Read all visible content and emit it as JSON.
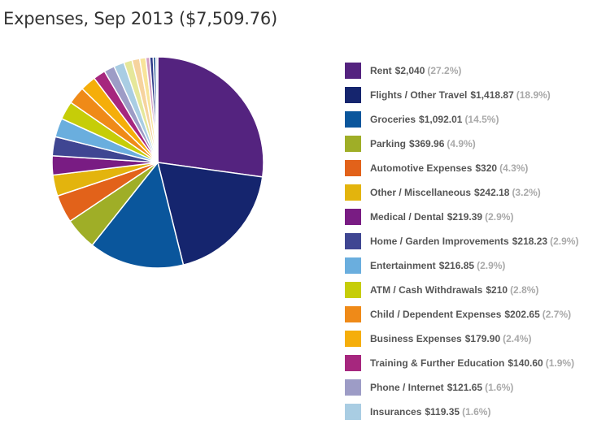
{
  "chart_data": {
    "type": "pie",
    "title": "Expenses, Sep 2013 ($7,509.76)",
    "total": 7509.76,
    "legend_position": "right",
    "slices": [
      {
        "label": "Rent",
        "amount": "$2,040",
        "value": 2040,
        "percent": "(27.2%)",
        "color": "#54237f"
      },
      {
        "label": "Flights / Other Travel",
        "amount": "$1,418.87",
        "value": 1418.87,
        "percent": "(18.9%)",
        "color": "#15256e"
      },
      {
        "label": "Groceries",
        "amount": "$1,092.01",
        "value": 1092.01,
        "percent": "(14.5%)",
        "color": "#0a569c"
      },
      {
        "label": "Parking",
        "amount": "$369.96",
        "value": 369.96,
        "percent": "(4.9%)",
        "color": "#9fae27"
      },
      {
        "label": "Automotive Expenses",
        "amount": "$320",
        "value": 320,
        "percent": "(4.3%)",
        "color": "#e2621a"
      },
      {
        "label": "Other / Miscellaneous",
        "amount": "$242.18",
        "value": 242.18,
        "percent": "(3.2%)",
        "color": "#e3b40d"
      },
      {
        "label": "Medical / Dental",
        "amount": "$219.39",
        "value": 219.39,
        "percent": "(2.9%)",
        "color": "#791c83"
      },
      {
        "label": "Home / Garden Improvements",
        "amount": "$218.23",
        "value": 218.23,
        "percent": "(2.9%)",
        "color": "#3f4692"
      },
      {
        "label": "Entertainment",
        "amount": "$216.85",
        "value": 216.85,
        "percent": "(2.9%)",
        "color": "#6aaede"
      },
      {
        "label": "ATM / Cash Withdrawals",
        "amount": "$210",
        "value": 210,
        "percent": "(2.8%)",
        "color": "#c6cd08"
      },
      {
        "label": "Child / Dependent Expenses",
        "amount": "$202.65",
        "value": 202.65,
        "percent": "(2.7%)",
        "color": "#ef8a18"
      },
      {
        "label": "Business Expenses",
        "amount": "$179.90",
        "value": 179.9,
        "percent": "(2.4%)",
        "color": "#f5ae0a"
      },
      {
        "label": "Training & Further Education",
        "amount": "$140.60",
        "value": 140.6,
        "percent": "(1.9%)",
        "color": "#a6277e"
      },
      {
        "label": "Phone / Internet",
        "amount": "$121.65",
        "value": 121.65,
        "percent": "(1.6%)",
        "color": "#9d9cc6"
      },
      {
        "label": "Insurances",
        "amount": "$119.35",
        "value": 119.35,
        "percent": "(1.6%)",
        "color": "#a9cde3"
      }
    ],
    "unlisted_slices": [
      {
        "value": 95,
        "color": "#e5e79a"
      },
      {
        "value": 88,
        "color": "#f6d39e"
      },
      {
        "value": 70,
        "color": "#f8e49a"
      },
      {
        "value": 45,
        "color": "#d39fc4"
      },
      {
        "value": 40,
        "color": "#2e3a88"
      },
      {
        "value": 30,
        "color": "#1a4f8f"
      },
      {
        "value": 22,
        "color": "#cfd7ea"
      }
    ]
  }
}
